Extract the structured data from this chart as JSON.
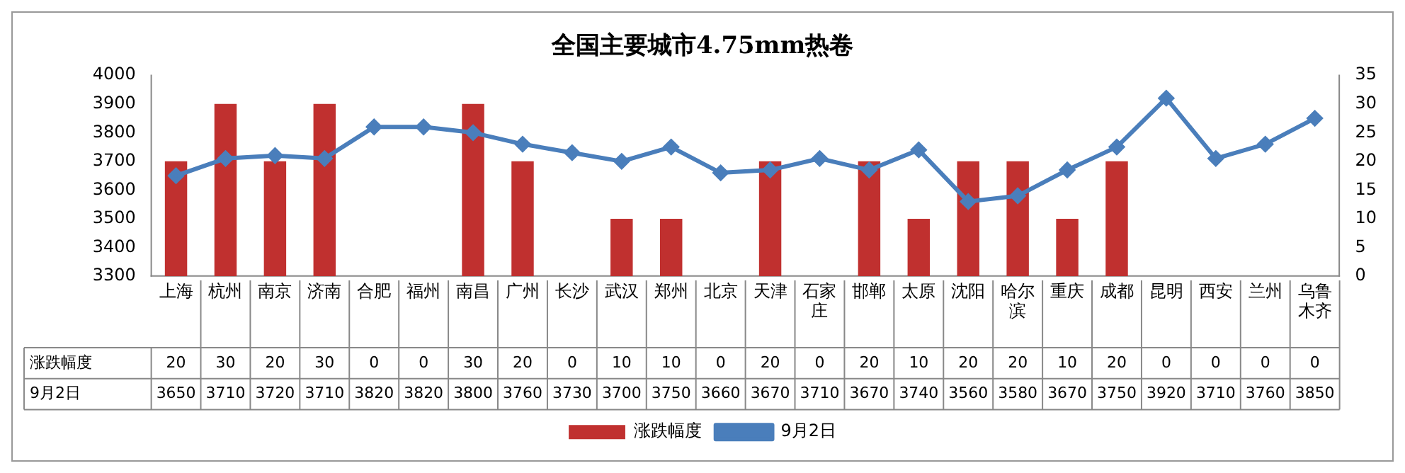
{
  "chart_data": {
    "type": "bar",
    "title": "全国主要城市4.75mm热卷",
    "categories": [
      "上海",
      "杭州",
      "南京",
      "济南",
      "合肥",
      "福州",
      "南昌",
      "广州",
      "长沙",
      "武汉",
      "郑州",
      "北京",
      "天津",
      "石家庄",
      "邯郸",
      "太原",
      "沈阳",
      "哈尔滨",
      "重庆",
      "成都",
      "昆明",
      "西安",
      "兰州",
      "乌鲁木齐"
    ],
    "series": [
      {
        "name": "涨跌幅度",
        "axis": "y2",
        "color": "#c0302f",
        "values": [
          20,
          30,
          20,
          30,
          0,
          0,
          30,
          20,
          0,
          10,
          10,
          0,
          20,
          0,
          20,
          10,
          20,
          20,
          10,
          20,
          0,
          0,
          0,
          0
        ]
      },
      {
        "name": "9月2日",
        "type": "line",
        "color": "#4a7ebb",
        "values": [
          3650,
          3710,
          3720,
          3710,
          3820,
          3820,
          3800,
          3760,
          3730,
          3700,
          3750,
          3660,
          3670,
          3710,
          3670,
          3740,
          3560,
          3580,
          3670,
          3750,
          3920,
          3710,
          3760,
          3850
        ]
      }
    ],
    "ylim": [
      3300,
      4000
    ],
    "yticks": [
      3300,
      3400,
      3500,
      3600,
      3700,
      3800,
      3900,
      4000
    ],
    "y2lim": [
      0,
      35
    ],
    "y2ticks": [
      0,
      5,
      10,
      15,
      20,
      25,
      30,
      35
    ],
    "legend": "bottom",
    "marker": "diamond",
    "line_style": "solid",
    "data_labels": true
  }
}
